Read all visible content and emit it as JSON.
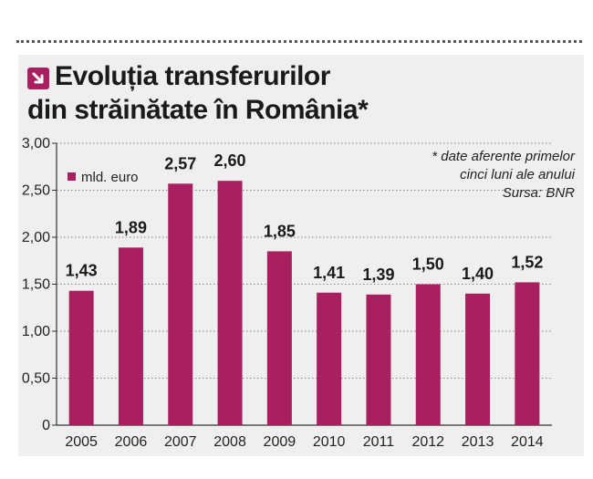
{
  "title_line1": "Evoluția transferurilor",
  "title_line2": "din străinătate în România*",
  "note_lines": [
    "* date aferente primelor",
    "cinci luni ale anului",
    "Sursa: BNR"
  ],
  "legend_label": "mld. euro",
  "colors": {
    "bar": "#a8205f",
    "axis": "#333333",
    "grid": "#888888"
  },
  "chart_data": {
    "type": "bar",
    "title": "Evoluția transferurilor din străinătate în România*",
    "categories": [
      "2005",
      "2006",
      "2007",
      "2008",
      "2009",
      "2010",
      "2011",
      "2012",
      "2013",
      "2014"
    ],
    "series": [
      {
        "name": "mld. euro",
        "values": [
          1.43,
          1.89,
          2.57,
          2.6,
          1.85,
          1.41,
          1.39,
          1.5,
          1.4,
          1.52
        ]
      }
    ],
    "data_labels": [
      "1,43",
      "1,89",
      "2,57",
      "2,60",
      "1,85",
      "1,41",
      "1,39",
      "1,50",
      "1,40",
      "1,52"
    ],
    "ylim": [
      0,
      3
    ],
    "yticks": [
      0,
      0.5,
      1.0,
      1.5,
      2.0,
      2.5,
      3.0
    ],
    "ytick_labels": [
      "0",
      "0,50",
      "1,00",
      "1,50",
      "2,00",
      "2,50",
      "3,00"
    ],
    "grid": "dotted-horizontal",
    "legend": "top-left",
    "xlabel": "",
    "ylabel": ""
  }
}
